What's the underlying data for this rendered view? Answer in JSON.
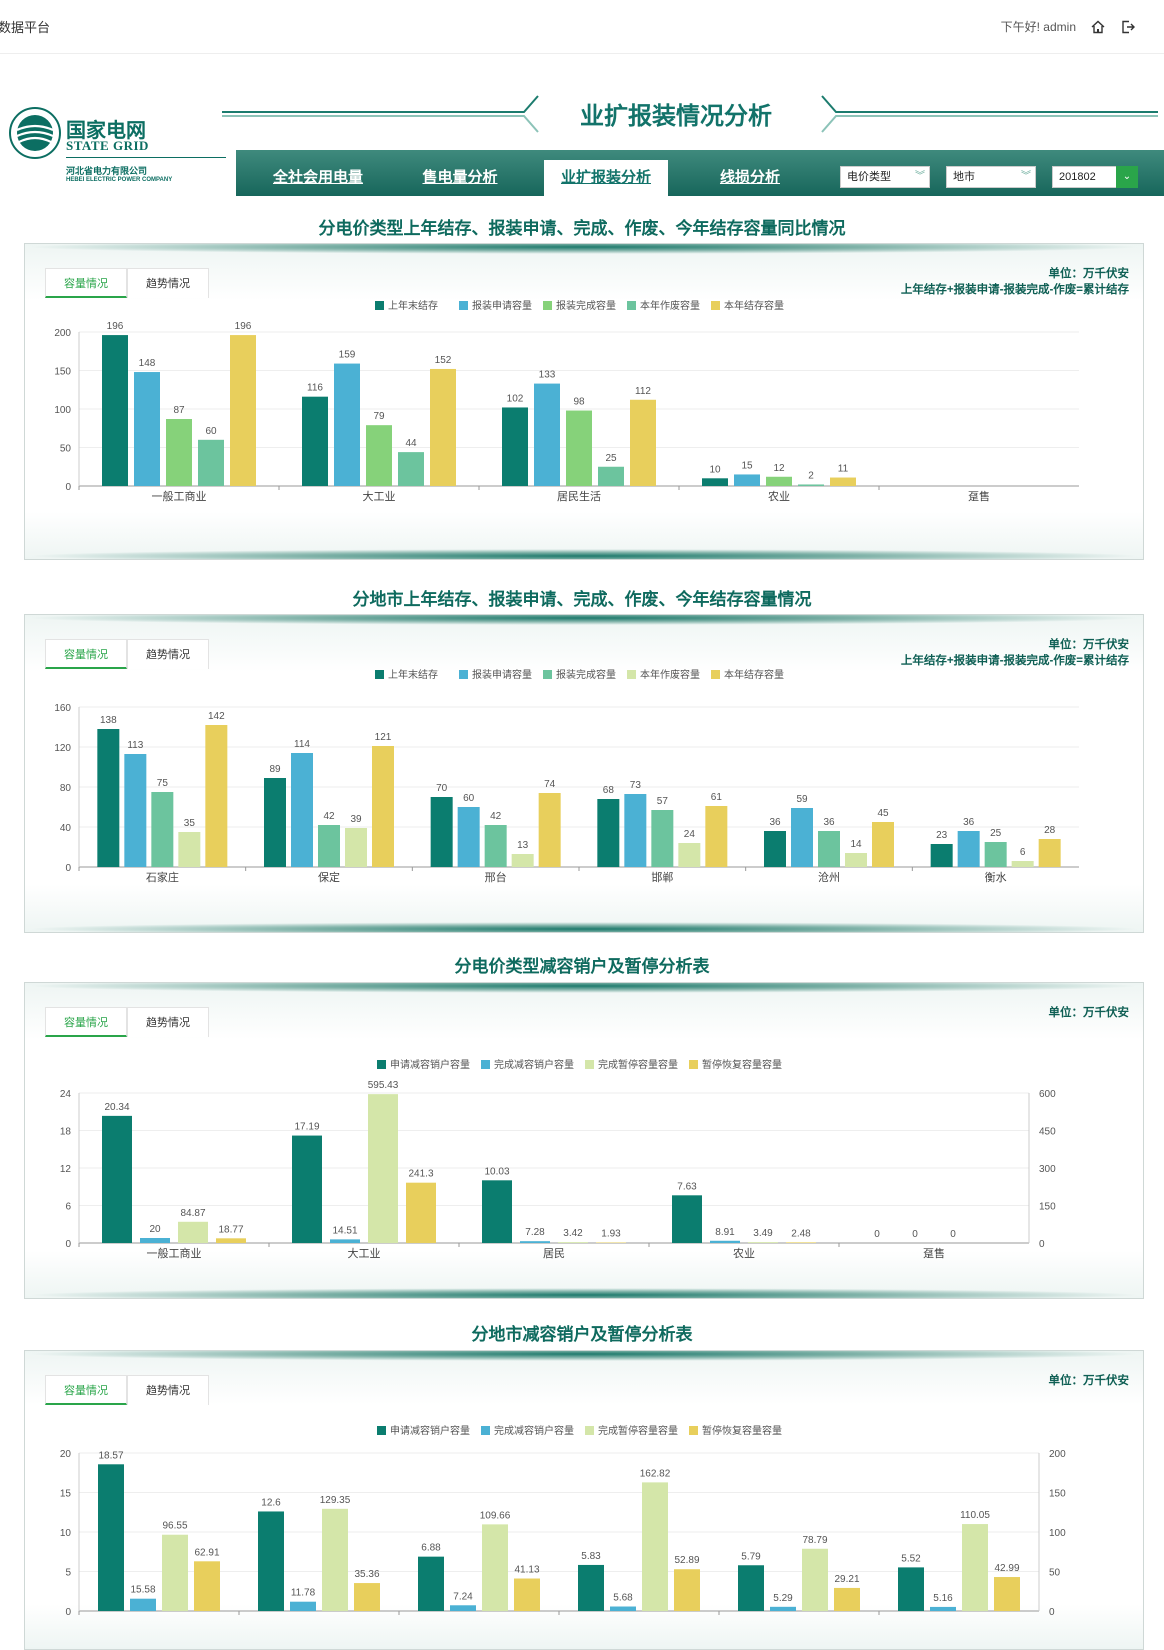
{
  "topbar": {
    "brand": "数据平台",
    "greeting": "下午好! admin"
  },
  "header": {
    "logo_cn": "国家电网",
    "logo_en": "STATE GRID",
    "company_cn": "河北省电力有限公司",
    "company_en": "HEBEI ELECTRIC POWER COMPANY",
    "title": "业扩报装情况分析",
    "nav": [
      "全社会用电量",
      "售电量分析",
      "业扩报装分析",
      "线损分析"
    ],
    "filters": {
      "price_type": "电价类型",
      "city": "地市",
      "period": "201802"
    }
  },
  "sections": [
    {
      "title": "分电价类型上年结存、报装申请、完成、作废、今年结存容量同比情况",
      "tab_active": "容量情况",
      "tab_other": "趋势情况",
      "unit": "单位：万千伏安",
      "formula": "上年结存+报装申请-报装完成-作废=累计结存"
    },
    {
      "title": "分地市上年结存、报装申请、完成、作废、今年结存容量情况",
      "tab_active": "容量情况",
      "tab_other": "趋势情况",
      "unit": "单位：万千伏安",
      "formula": "上年结存+报装申请-报装完成-作废=累计结存"
    },
    {
      "title": "分电价类型减容销户及暂停分析表",
      "tab_active": "容量情况",
      "tab_other": "趋势情况",
      "unit": "单位：万千伏安",
      "formula": ""
    },
    {
      "title": "分地市减容销户及暂停分析表",
      "tab_active": "容量情况",
      "tab_other": "趋势情况",
      "unit": "单位：万千伏安",
      "formula": ""
    }
  ],
  "colors": {
    "c1": "#0b7d6f",
    "c2": "#4bb1d4",
    "c3": "#86d27a",
    "c3b": "#6cc49e",
    "c4": "#d4e6a9",
    "c5": "#e8cf5c"
  },
  "chart_data": [
    {
      "type": "bar",
      "categories": [
        "一般工商业",
        "大工业",
        "居民生活",
        "农业",
        "趸售"
      ],
      "ylim": [
        0,
        200
      ],
      "yticks": [
        0,
        50,
        100,
        150,
        200
      ],
      "series": [
        {
          "name": "上年末结存",
          "values": [
            196,
            116,
            102,
            10,
            null
          ]
        },
        {
          "name": "报装申请容量",
          "values": [
            148,
            159,
            133,
            15,
            null
          ]
        },
        {
          "name": "报装完成容量",
          "values": [
            87,
            79,
            98,
            12,
            null
          ]
        },
        {
          "name": "本年作废容量",
          "values": [
            60,
            44,
            25,
            2,
            null
          ]
        },
        {
          "name": "本年结存容量",
          "values": [
            196,
            152,
            112,
            11,
            null
          ]
        }
      ]
    },
    {
      "type": "bar",
      "categories": [
        "石家庄",
        "保定",
        "邢台",
        "邯郸",
        "沧州",
        "衡水"
      ],
      "ylim": [
        0,
        160
      ],
      "yticks": [
        0,
        40,
        80,
        120,
        160
      ],
      "series": [
        {
          "name": "上年末结存",
          "values": [
            138,
            89,
            70,
            68,
            36,
            23
          ]
        },
        {
          "name": "报装申请容量",
          "values": [
            113,
            114,
            60,
            73,
            59,
            36
          ]
        },
        {
          "name": "报装完成容量",
          "values": [
            75,
            42,
            42,
            57,
            36,
            25
          ]
        },
        {
          "name": "本年作废容量",
          "values": [
            35,
            39,
            13,
            24,
            14,
            6
          ]
        },
        {
          "name": "本年结存容量",
          "values": [
            142,
            121,
            74,
            61,
            45,
            28
          ]
        }
      ]
    },
    {
      "type": "bar",
      "categories": [
        "一般工商业",
        "大工业",
        "居民",
        "农业",
        "趸售"
      ],
      "ylim": [
        0,
        24
      ],
      "yticks": [
        0,
        6,
        12,
        18,
        24
      ],
      "y2lim": [
        0,
        600
      ],
      "y2ticks": [
        0,
        150,
        300,
        450,
        600
      ],
      "series": [
        {
          "name": "申请减容销户容量",
          "values": [
            20.34,
            17.19,
            10.03,
            7.63,
            0
          ],
          "axis": "left"
        },
        {
          "name": "完成减容销户容量",
          "values": [
            20,
            14.51,
            7.28,
            8.91,
            0
          ],
          "axis": "right"
        },
        {
          "name": "完成暂停容量容量",
          "values": [
            84.87,
            595.43,
            3.42,
            3.49,
            0
          ],
          "axis": "right"
        },
        {
          "name": "暂停恢复容量容量",
          "values": [
            18.77,
            241.3,
            1.93,
            2.48,
            null
          ],
          "axis": "right"
        }
      ]
    },
    {
      "type": "bar",
      "categories": [
        "",
        "",
        "",
        "",
        "",
        ""
      ],
      "ylim": [
        0,
        20
      ],
      "yticks": [
        0,
        5,
        10,
        15,
        20
      ],
      "y2lim": [
        0,
        200
      ],
      "y2ticks": [
        0,
        50,
        100,
        150,
        200
      ],
      "series": [
        {
          "name": "申请减容销户容量",
          "values": [
            18.57,
            12.6,
            6.88,
            5.83,
            5.79,
            5.52
          ],
          "axis": "left"
        },
        {
          "name": "完成减容销户容量",
          "values": [
            15.58,
            11.78,
            7.24,
            5.68,
            5.29,
            5.16
          ],
          "axis": "right"
        },
        {
          "name": "完成暂停容量容量",
          "values": [
            96.55,
            129.35,
            109.66,
            162.82,
            78.79,
            110.05
          ],
          "axis": "right"
        },
        {
          "name": "暂停恢复容量容量",
          "values": [
            62.91,
            35.36,
            41.13,
            52.89,
            29.21,
            42.99
          ],
          "axis": "right"
        }
      ]
    }
  ]
}
